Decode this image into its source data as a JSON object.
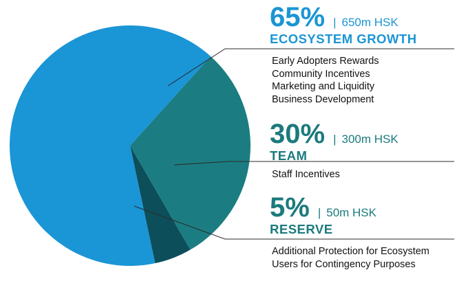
{
  "chart_data": {
    "type": "pie",
    "title": "",
    "slices": [
      {
        "label": "ECOSYSTEM GROWTH",
        "value": 65,
        "percent_label": "65%",
        "amount": "650m HSK",
        "color": "#1a95d6",
        "color_text": "#1b95d4",
        "details": [
          "Early Adopters Rewards",
          "Community Incentives",
          "Marketing and Liquidity",
          "Business Development"
        ]
      },
      {
        "label": "TEAM",
        "value": 30,
        "percent_label": "30%",
        "amount": "300m HSK",
        "color": "#1b7d81",
        "color_text": "#1b7a7d",
        "details": [
          "Staff Incentives"
        ]
      },
      {
        "label": "RESERVE",
        "value": 5,
        "percent_label": "5%",
        "amount": "50m HSK",
        "color": "#0d4e5b",
        "color_text": "#1b7a7d",
        "details": [
          "Additional Protection for Ecosystem",
          "Users for Contingency Purposes"
        ]
      }
    ],
    "separator": "|",
    "legend_position": "right"
  }
}
